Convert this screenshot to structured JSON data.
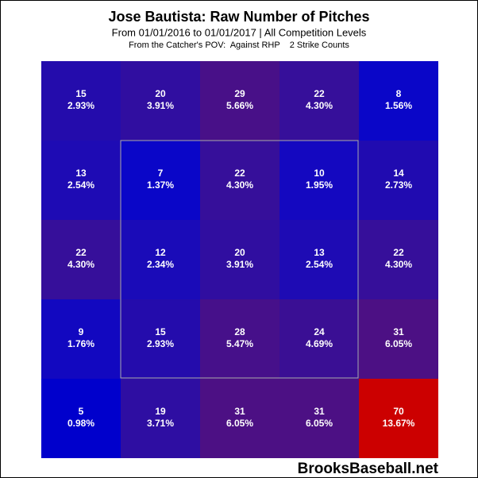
{
  "chart_data": {
    "type": "heatmap",
    "title": "Jose Bautista: Raw Number of Pitches",
    "subtitle": "From 01/01/2016 to 01/01/2017 | All Competition Levels",
    "subtitle2": "From the Catcher's POV:  Against RHP    2 Strike Counts",
    "watermark": "BrooksBaseball.net",
    "rows": [
      {
        "values": [
          15,
          20,
          29,
          22,
          8
        ],
        "value_labels": [
          "2.93%",
          "3.91%",
          "5.66%",
          "4.30%",
          "1.56%"
        ],
        "colors": [
          "#240cac",
          "#300ea0",
          "#481088",
          "#360f9a",
          "#0a06c8"
        ]
      },
      {
        "values": [
          13,
          7,
          22,
          10,
          14
        ],
        "value_labels": [
          "2.54%",
          "1.37%",
          "4.30%",
          "1.95%",
          "2.73%"
        ],
        "colors": [
          "#1e0bb4",
          "#0a06c8",
          "#360f9a",
          "#1408c0",
          "#200bb0"
        ]
      },
      {
        "values": [
          22,
          12,
          20,
          13,
          22
        ],
        "value_labels": [
          "4.30%",
          "2.34%",
          "3.91%",
          "2.54%",
          "4.30%"
        ],
        "colors": [
          "#360f9a",
          "#1a0bb8",
          "#300ea0",
          "#1e0bb4",
          "#360f9a"
        ]
      },
      {
        "values": [
          9,
          15,
          28,
          24,
          31
        ],
        "value_labels": [
          "1.76%",
          "2.93%",
          "5.47%",
          "4.69%",
          "6.05%"
        ],
        "colors": [
          "#1208c0",
          "#240cac",
          "#46108a",
          "#3a0f94",
          "#4c1084"
        ]
      },
      {
        "values": [
          5,
          19,
          31,
          31,
          70
        ],
        "value_labels": [
          "0.98%",
          "3.71%",
          "6.05%",
          "6.05%",
          "13.67%"
        ],
        "colors": [
          "#0000cc",
          "#2e0ea2",
          "#4c1084",
          "#4c1084",
          "#cc0000"
        ]
      }
    ]
  }
}
